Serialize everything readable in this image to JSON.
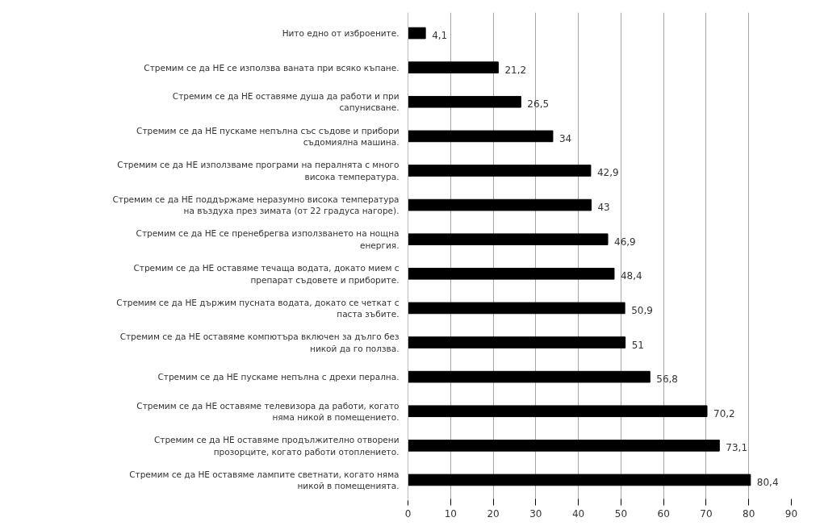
{
  "chart_data": {
    "type": "bar",
    "orientation": "horizontal",
    "categories": [
      "Нито едно от изброените.",
      "Стремим се да НЕ се използва ваната при всяко къпане.",
      "Стремим се да НЕ оставяме душа да работи и при сапунисване.",
      "Стремим се да НЕ пускаме непълна със съдове и прибори съдомиялна машина.",
      "Стремим се да НЕ използваме програми на пералнята с много висока температура.",
      "Стремим се да НЕ поддържаме неразумно висока температура на въздуха през зимата (от 22 градуса нагоре).",
      "Стремим се да НЕ се пренебрегва използването на нощна енергия.",
      "Стремим се да НЕ оставяме течаща водата, докато мием с препарат съдовете и приборите.",
      "Стремим се да НЕ държим пусната водата, докато се четкат с паста зъбите.",
      "Стремим се да НЕ оставяме компютъра включен за дълго без никой да го ползва.",
      "Стремим се да НЕ пускаме непълна с дрехи перална.",
      "Стремим се да НЕ оставяме телевизора да работи, когато няма никой в помещението.",
      "Стремим се да НЕ оставяме продължително отворени прозорците, когато работи отоплението.",
      "Стремим се да НЕ оставяме лампите светнати, когато няма никой в помещенията."
    ],
    "values": [
      4.1,
      21.2,
      26.5,
      34,
      42.9,
      43,
      46.9,
      48.4,
      50.9,
      51,
      56.8,
      70.2,
      73.1,
      80.4
    ],
    "value_labels": [
      "4,1",
      "21,2",
      "26,5",
      "34",
      "42,9",
      "43",
      "46,9",
      "48,4",
      "50,9",
      "51",
      "56,8",
      "70,2",
      "73,1",
      "80,4"
    ],
    "color": "#000000",
    "xlim": [
      0,
      90
    ],
    "xticks": [
      0,
      10,
      20,
      30,
      40,
      50,
      60,
      70,
      80,
      90
    ],
    "grid": "x"
  }
}
